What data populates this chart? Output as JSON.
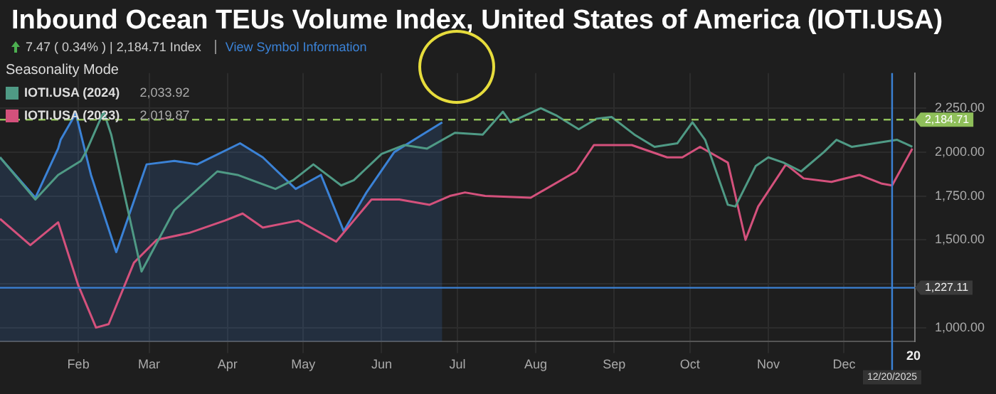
{
  "chart_data": {
    "type": "line",
    "title": "Inbound Ocean TEUs Volume Index, United States of America (IOTI.USA)",
    "subtitle": "7.47 ( 0.34% ) | 2,184.71 Index",
    "legend_title": "Seasonality Mode",
    "legend": "top left",
    "grid": true,
    "marker": "none",
    "line_style": "solid",
    "xlim": [
      "2025-01-01",
      "2025-12-29"
    ],
    "xticks": [
      {
        "value": "2025-02-01",
        "label": "Feb"
      },
      {
        "value": "2025-03-01",
        "label": "Mar"
      },
      {
        "value": "2025-04-01",
        "label": "Apr"
      },
      {
        "value": "2025-05-01",
        "label": "May"
      },
      {
        "value": "2025-06-01",
        "label": "Jun"
      },
      {
        "value": "2025-07-01",
        "label": "Jul"
      },
      {
        "value": "2025-08-01",
        "label": "Aug"
      },
      {
        "value": "2025-09-01",
        "label": "Sep"
      },
      {
        "value": "2025-10-01",
        "label": "Oct"
      },
      {
        "value": "2025-11-01",
        "label": "Nov"
      },
      {
        "value": "2025-12-01",
        "label": "Dec"
      }
    ],
    "ylim": [
      920,
      2450
    ],
    "yticks": [
      {
        "value": 1000,
        "label": "1,000.00"
      },
      {
        "value": 1250,
        "label": null
      },
      {
        "value": 1500,
        "label": "1,500.00"
      },
      {
        "value": 1750,
        "label": "1,750.00"
      },
      {
        "value": 2000,
        "label": "2,000.00"
      },
      {
        "value": 2250,
        "label": "2,250.00"
      }
    ],
    "series": [
      {
        "name": "IOTI.USA (2024)",
        "color": "#4f9a85",
        "x": [
          "2025-01-01",
          "2025-01-15",
          "2025-01-24",
          "2025-02-02",
          "2025-02-04",
          "2025-02-11",
          "2025-02-14",
          "2025-02-26",
          "2025-03-11",
          "2025-03-28",
          "2025-04-05",
          "2025-04-20",
          "2025-04-27",
          "2025-05-05",
          "2025-05-16",
          "2025-05-21",
          "2025-06-01",
          "2025-06-10",
          "2025-06-19",
          "2025-06-30",
          "2025-07-11",
          "2025-07-19",
          "2025-07-22",
          "2025-08-03",
          "2025-08-09",
          "2025-08-18",
          "2025-08-25",
          "2025-08-31",
          "2025-09-09",
          "2025-09-17",
          "2025-09-26",
          "2025-10-02",
          "2025-10-07",
          "2025-10-16",
          "2025-10-19",
          "2025-10-27",
          "2025-11-01",
          "2025-11-07",
          "2025-11-14",
          "2025-11-23",
          "2025-11-28",
          "2025-12-04",
          "2025-12-13",
          "2025-12-22",
          "2025-12-28"
        ],
        "values": [
          1970,
          1730,
          1870,
          1950,
          2000,
          2230,
          2100,
          1320,
          1670,
          1890,
          1870,
          1790,
          1840,
          1930,
          1810,
          1840,
          1990,
          2040,
          2020,
          2110,
          2100,
          2230,
          2170,
          2250,
          2210,
          2130,
          2190,
          2200,
          2100,
          2030,
          2050,
          2170,
          2070,
          1700,
          1690,
          1920,
          1970,
          1940,
          1890,
          2000,
          2070,
          2030,
          2050,
          2070,
          2030
        ]
      },
      {
        "name": "IOTI.USA (2023)",
        "color": "#d4517c",
        "x": [
          "2025-01-01",
          "2025-01-13",
          "2025-01-24",
          "2025-02-01",
          "2025-02-08",
          "2025-02-13",
          "2025-02-23",
          "2025-03-04",
          "2025-03-17",
          "2025-03-31",
          "2025-04-07",
          "2025-04-15",
          "2025-04-29",
          "2025-05-14",
          "2025-05-28",
          "2025-06-08",
          "2025-06-20",
          "2025-06-28",
          "2025-07-04",
          "2025-07-12",
          "2025-07-30",
          "2025-08-17",
          "2025-08-24",
          "2025-09-08",
          "2025-09-22",
          "2025-09-28",
          "2025-10-05",
          "2025-10-16",
          "2025-10-23",
          "2025-10-28",
          "2025-11-08",
          "2025-11-15",
          "2025-11-26",
          "2025-12-07",
          "2025-12-16",
          "2025-12-20",
          "2025-12-28"
        ],
        "values": [
          1620,
          1470,
          1600,
          1240,
          1000,
          1020,
          1370,
          1500,
          1540,
          1610,
          1650,
          1570,
          1610,
          1490,
          1730,
          1730,
          1700,
          1750,
          1770,
          1750,
          1740,
          1890,
          2040,
          2040,
          1970,
          1970,
          2030,
          1940,
          1500,
          1690,
          1930,
          1850,
          1830,
          1870,
          1820,
          1810,
          2020
        ]
      },
      {
        "type": "area",
        "color": "#3b82d6",
        "x": [
          "2025-01-01",
          "2025-01-15",
          "2025-01-24",
          "2025-01-25",
          "2025-01-31",
          "2025-02-06",
          "2025-02-16",
          "2025-02-28",
          "2025-03-11",
          "2025-03-20",
          "2025-04-06",
          "2025-04-15",
          "2025-04-28",
          "2025-05-08",
          "2025-05-17",
          "2025-05-26",
          "2025-06-06",
          "2025-06-16",
          "2025-06-25"
        ],
        "values": [
          1970,
          1740,
          2020,
          2070,
          2220,
          1870,
          1430,
          1930,
          1950,
          1930,
          2050,
          1970,
          1790,
          1870,
          1550,
          1770,
          2000,
          2090,
          2170
        ]
      }
    ],
    "ref_lines": [
      {
        "axis": "y",
        "value": 2184.71,
        "label": "2,184.71",
        "color": "#8fbf5a",
        "line_style": "dashed"
      },
      {
        "axis": "y",
        "value": 1227.11,
        "label": "1,227.11",
        "color": "#3b82d6",
        "line_style": "solid"
      },
      {
        "axis": "x",
        "value": "2025-12-20",
        "label": "12/20/2025",
        "color": "#3b82d6",
        "line_style": "solid"
      }
    ],
    "annotations": [
      "View Symbol Information",
      "2,033.92",
      "2,019.87",
      "20"
    ]
  }
}
